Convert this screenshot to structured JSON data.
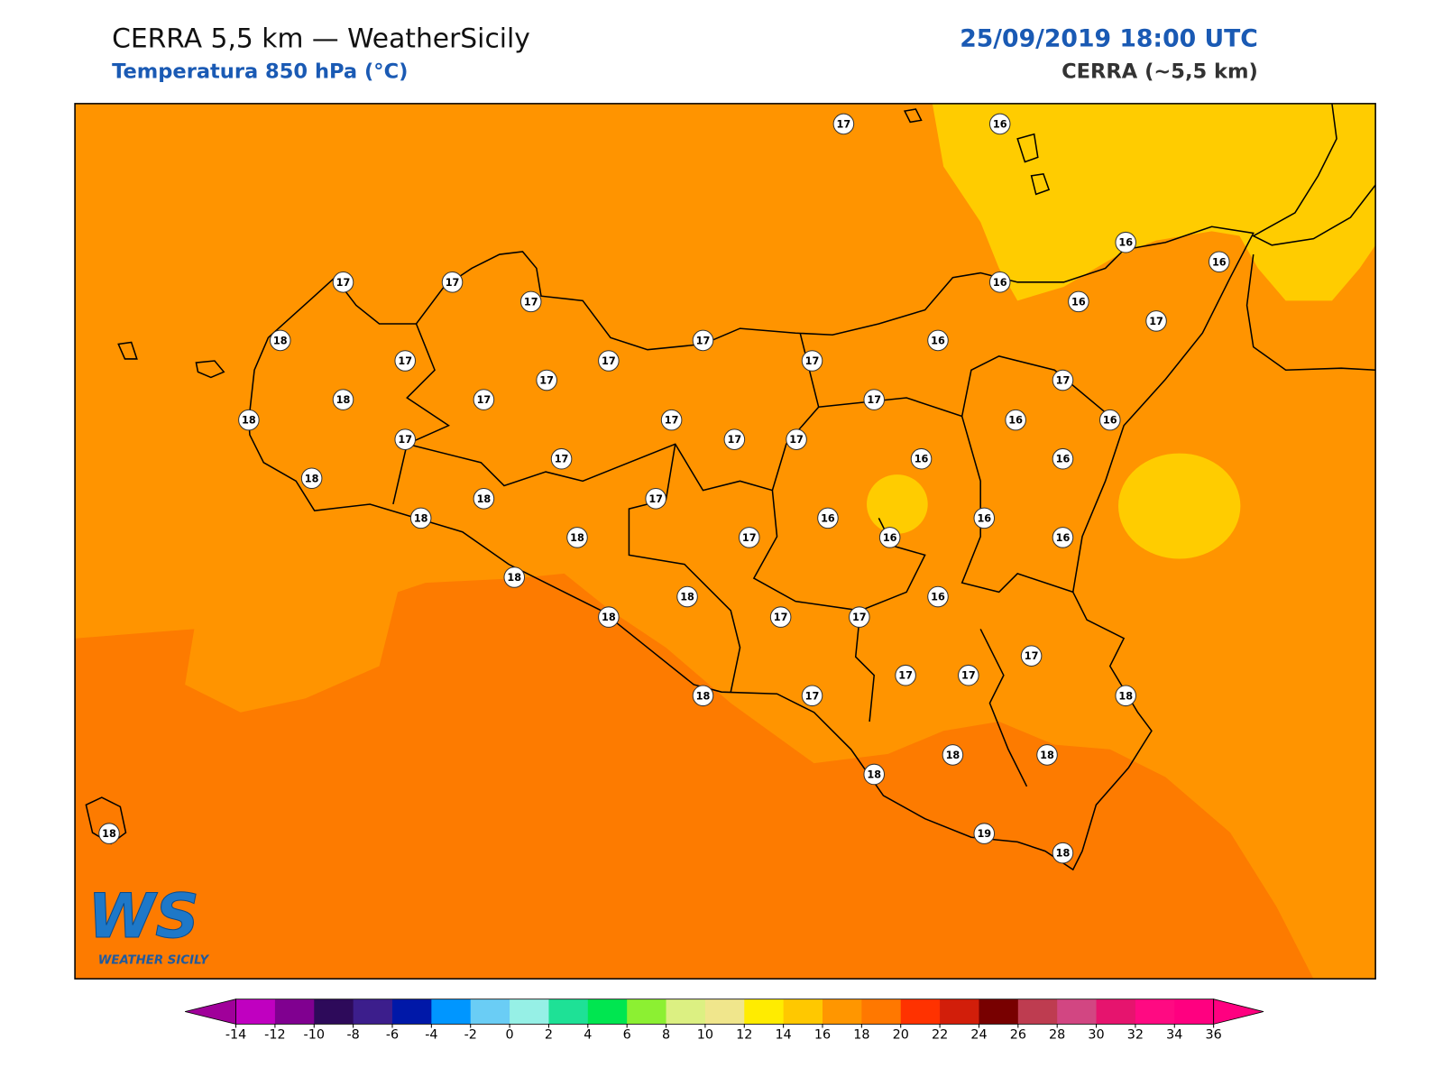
{
  "header": {
    "title": "CERRA 5,5 km — WeatherSicily",
    "subtitle": "Temperatura 850 hPa (°C)",
    "date": "25/09/2019 18:00 UTC",
    "model": "CERRA (~5,5 km)"
  },
  "logo": {
    "text": "WS",
    "caption": "WEATHER SICILY"
  },
  "stations": [
    17,
    16,
    16,
    16,
    17,
    17,
    17,
    16,
    16,
    17,
    18,
    17,
    16,
    17,
    17,
    17,
    18,
    17,
    17,
    17,
    17,
    18,
    17,
    17,
    17,
    16,
    16,
    17,
    17,
    16,
    16,
    18,
    18,
    17,
    18,
    16,
    16,
    18,
    17,
    16,
    16,
    18,
    18,
    16,
    18,
    17,
    17,
    17,
    17,
    17,
    18,
    18,
    17,
    18,
    18,
    18,
    19,
    18,
    18
  ],
  "colorbar": {
    "ticks": [
      -14,
      -12,
      -10,
      -8,
      -6,
      -4,
      -2,
      0,
      2,
      4,
      6,
      8,
      10,
      12,
      14,
      16,
      18,
      20,
      22,
      24,
      26,
      28,
      30,
      32,
      34,
      36
    ],
    "under": "#a0009a",
    "over": "#ff0080",
    "colors": [
      "#c000c0",
      "#800090",
      "#2d0a5a",
      "#3c1e8c",
      "#0018a8",
      "#0096ff",
      "#6acdf5",
      "#96f0e6",
      "#1ee196",
      "#00e650",
      "#8cf032",
      "#dcf082",
      "#f0e68c",
      "#ffec00",
      "#ffc800",
      "#ff9600",
      "#ff7800",
      "#ff3200",
      "#d21e0a",
      "#780000",
      "#be3c50",
      "#d24682",
      "#e6146e",
      "#ff0a82",
      "#ff0080"
    ]
  }
}
